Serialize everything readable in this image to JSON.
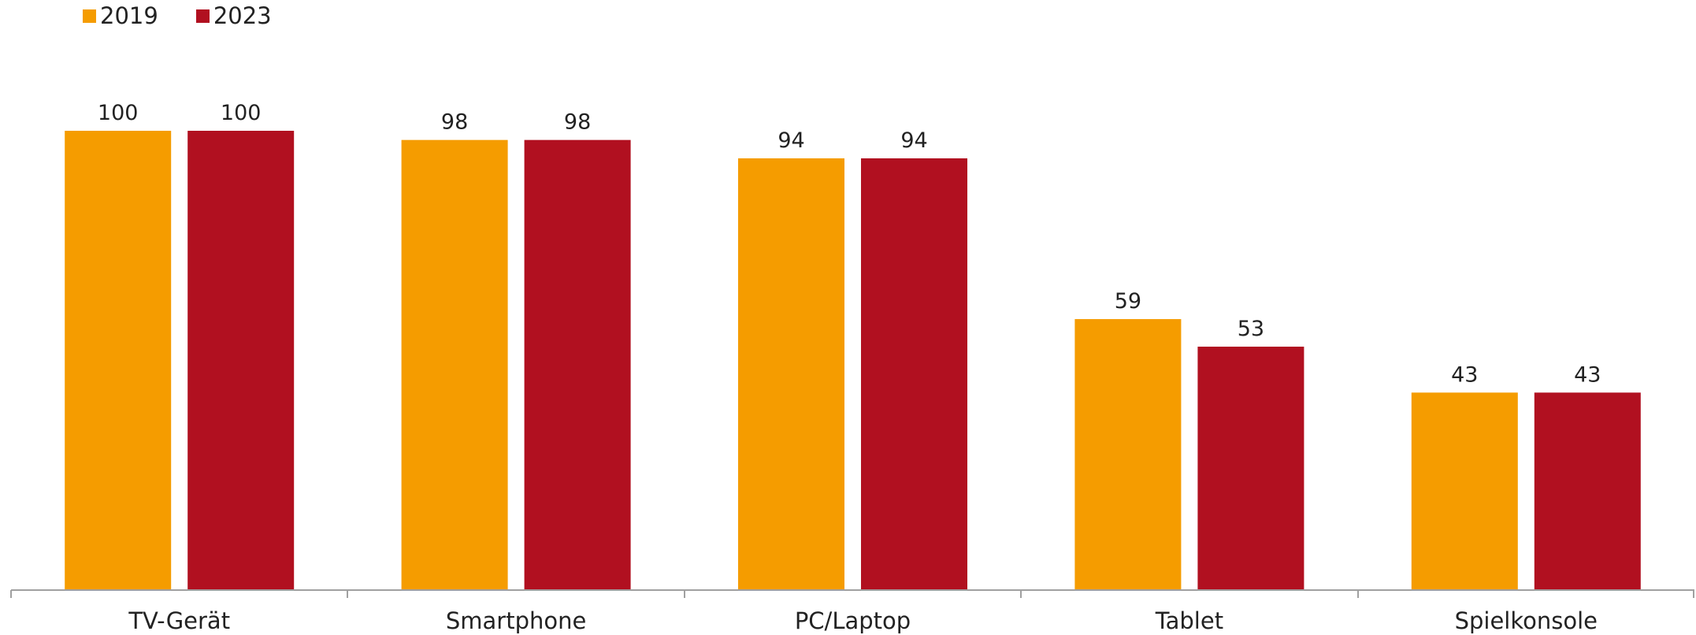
{
  "chart_data": {
    "type": "bar",
    "categories": [
      "TV-Gerät",
      "Smartphone",
      "PC/Laptop",
      "Tablet",
      "Spielkonsole"
    ],
    "series": [
      {
        "name": "2019",
        "values": [
          100,
          98,
          94,
          59,
          43
        ],
        "color": "#F59C00"
      },
      {
        "name": "2023",
        "values": [
          100,
          98,
          94,
          53,
          43
        ],
        "color": "#B11020"
      }
    ],
    "ylim": [
      0,
      100
    ],
    "grid": false,
    "legend_position": "top-left",
    "axis_color": "#A0A0A0"
  }
}
